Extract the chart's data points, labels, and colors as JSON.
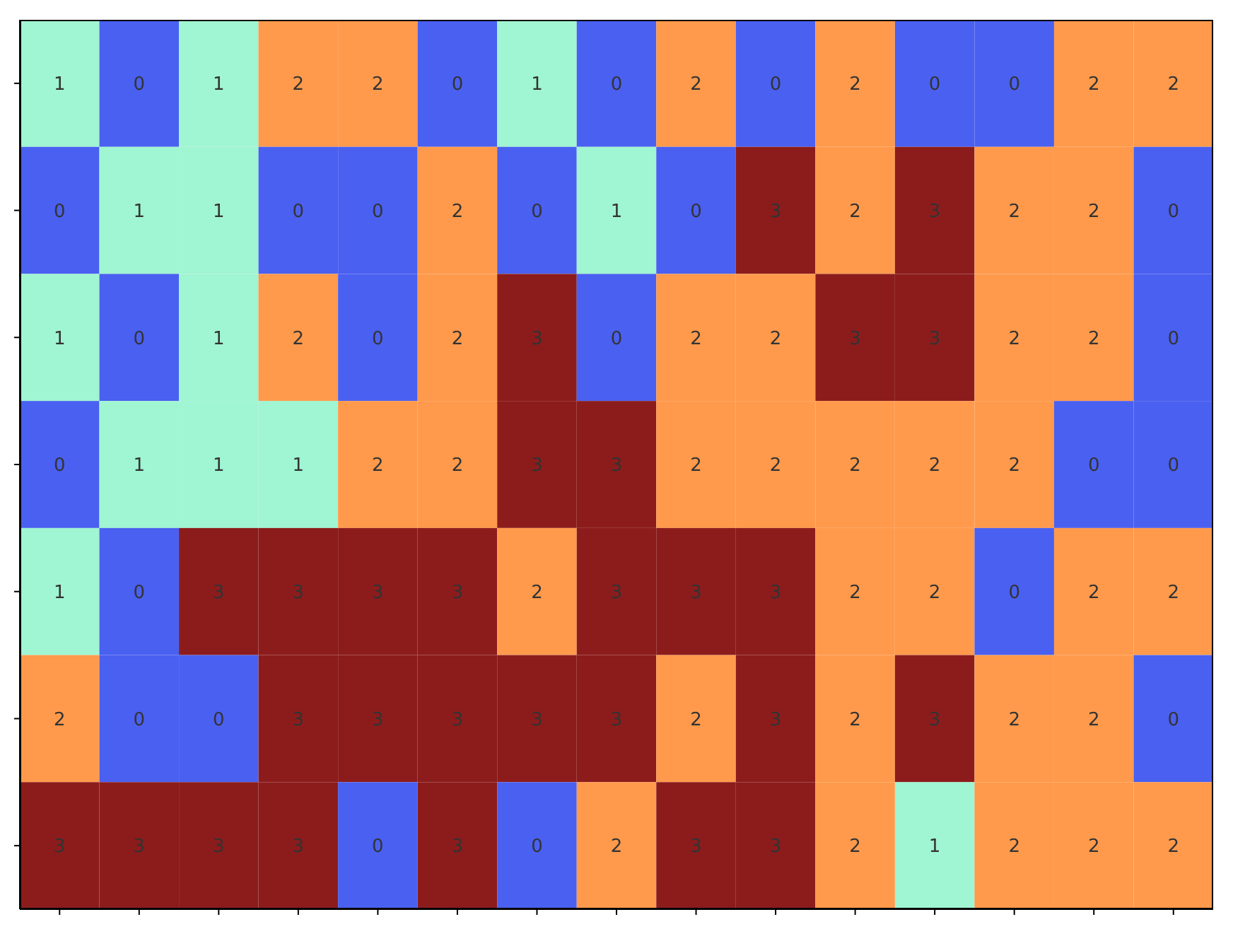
{
  "chart_data": {
    "type": "heatmap",
    "categories": [
      null,
      null,
      null,
      null,
      null,
      null,
      null,
      null,
      null,
      null,
      null,
      null,
      null,
      null,
      null
    ],
    "y_categories": [
      null,
      null,
      null,
      null,
      null,
      null,
      null
    ],
    "cells": [
      [
        1,
        0,
        1,
        2,
        2,
        0,
        1,
        0,
        2,
        0,
        2,
        0,
        0,
        2,
        2
      ],
      [
        0,
        1,
        1,
        0,
        0,
        2,
        0,
        1,
        0,
        3,
        2,
        3,
        2,
        2,
        0
      ],
      [
        1,
        0,
        1,
        2,
        0,
        2,
        3,
        0,
        2,
        2,
        3,
        3,
        2,
        2,
        0
      ],
      [
        0,
        1,
        1,
        1,
        2,
        2,
        3,
        3,
        2,
        2,
        2,
        2,
        2,
        0,
        0
      ],
      [
        1,
        0,
        3,
        3,
        3,
        3,
        2,
        3,
        3,
        3,
        2,
        2,
        0,
        2,
        2
      ],
      [
        2,
        0,
        0,
        3,
        3,
        3,
        3,
        3,
        2,
        3,
        2,
        3,
        2,
        2,
        0
      ],
      [
        3,
        3,
        3,
        3,
        0,
        3,
        0,
        2,
        3,
        3,
        2,
        1,
        2,
        2,
        2
      ]
    ],
    "colors": [
      "#4a60f0",
      "#a0f5d2",
      "#ff9a4c",
      "#8c1c1c"
    ],
    "data_labels": true
  }
}
